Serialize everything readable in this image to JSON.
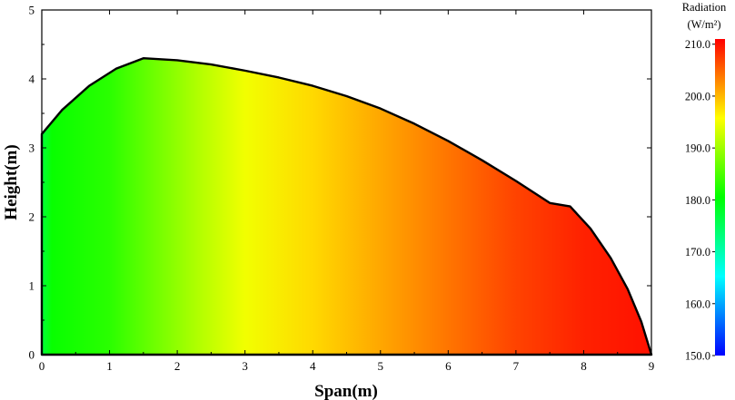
{
  "chart_data": {
    "type": "heatmap",
    "title": "",
    "xlabel": "Span(m)",
    "ylabel": "Height(m)",
    "xlim": [
      0,
      9
    ],
    "ylim": [
      0,
      5
    ],
    "x_ticks": [
      "0",
      "1",
      "2",
      "3",
      "4",
      "5",
      "6",
      "7",
      "8",
      "9"
    ],
    "y_ticks": [
      "0",
      "1",
      "2",
      "3",
      "4",
      "5"
    ],
    "boundary_profile": {
      "x": [
        0,
        0.3,
        0.7,
        1.1,
        1.5,
        2.0,
        2.5,
        3.0,
        3.5,
        4.0,
        4.5,
        5.0,
        5.5,
        6.0,
        6.5,
        7.0,
        7.5,
        7.8,
        8.1,
        8.4,
        8.65,
        8.85,
        9.0
      ],
      "y": [
        3.2,
        3.55,
        3.9,
        4.15,
        4.3,
        4.27,
        4.21,
        4.12,
        4.02,
        3.9,
        3.75,
        3.57,
        3.35,
        3.1,
        2.82,
        2.52,
        2.2,
        2.15,
        1.83,
        1.4,
        0.95,
        0.48,
        0
      ]
    },
    "colorbar": {
      "title": "Radiation",
      "unit": "(W/m²)",
      "min": 150,
      "max": 211,
      "tick_labels": [
        "150.0",
        "160.0",
        "170.0",
        "180.0",
        "190.0",
        "200.0",
        "210.0"
      ],
      "tick_values": [
        150,
        160,
        170,
        180,
        190,
        200,
        210
      ],
      "colormap": [
        "#0000ff",
        "#00ffff",
        "#00ff00",
        "#ffff00",
        "#ff0000"
      ]
    },
    "field_gradient": {
      "along_span_x": [
        0,
        0.15,
        1.0,
        2.3,
        3.0,
        4.0,
        5.0,
        6.0,
        7.0,
        8.0,
        9.0
      ],
      "radiation_w_m2": [
        177,
        181,
        183,
        191,
        195,
        198,
        201,
        204,
        207,
        209,
        210
      ]
    }
  }
}
